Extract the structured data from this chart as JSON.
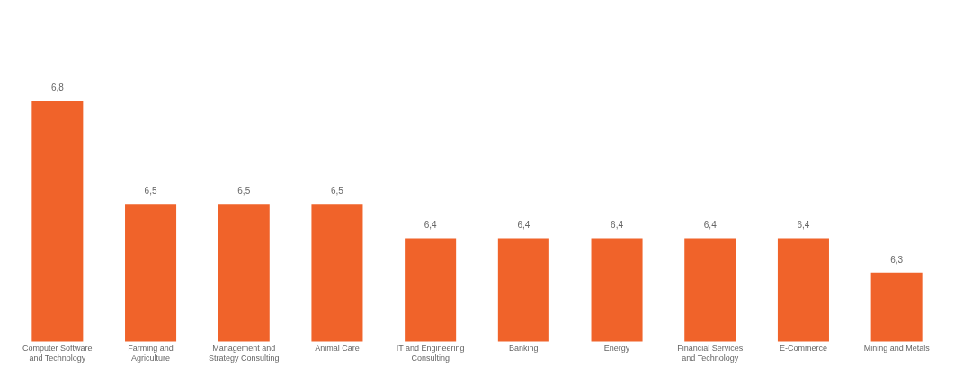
{
  "chart_data": {
    "type": "bar",
    "categories": [
      "Computer Software and Technology",
      "Farming and Agriculture",
      "Management and Strategy Consulting",
      "Animal Care",
      "IT and Engineering Consulting",
      "Banking",
      "Energy",
      "Financial Services and Technology",
      "E-Commerce",
      "Mining and Metals"
    ],
    "values": [
      6.8,
      6.5,
      6.5,
      6.5,
      6.4,
      6.4,
      6.4,
      6.4,
      6.4,
      6.3
    ],
    "value_labels": [
      "6,8",
      "6,5",
      "6,5",
      "6,5",
      "6,4",
      "6,4",
      "6,4",
      "6,4",
      "6,4",
      "6,3"
    ],
    "color": "#f0632a",
    "grid": false,
    "legend": false
  }
}
